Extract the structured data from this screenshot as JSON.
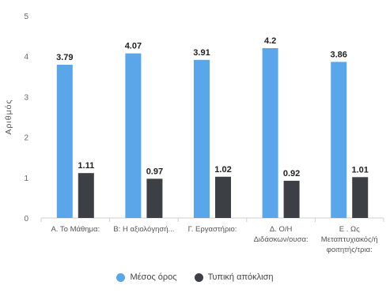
{
  "chart_data": {
    "type": "bar",
    "ylabel": "Αριθμός",
    "ylim": [
      0,
      5
    ],
    "yticks": [
      0,
      1,
      2,
      3,
      4,
      5
    ],
    "grid": false,
    "legend_position": "bottom",
    "categories": [
      [
        "Α. Το Μάθημα:"
      ],
      [
        "Β: Η αξιολόγησή..."
      ],
      [
        "Γ. Εργαστήριο:"
      ],
      [
        "Δ. Ο/Η",
        "Διδάσκων/ουσα:"
      ],
      [
        "Ε . Ως",
        "Μεταπτυχιακός/ή",
        "φοιτητής/τρια:"
      ]
    ],
    "series": [
      {
        "name": "Μέσος όρος",
        "color": "#5aa6ea",
        "values": [
          3.79,
          4.07,
          3.91,
          4.2,
          3.86
        ],
        "labels": [
          "3.79",
          "4.07",
          "3.91",
          "4.2",
          "3.86"
        ]
      },
      {
        "name": "Τυπική απόκλιση",
        "color": "#3c3f44",
        "values": [
          1.11,
          0.97,
          1.02,
          0.92,
          1.01
        ],
        "labels": [
          "1.11",
          "0.97",
          "1.02",
          "0.92",
          "1.01"
        ]
      }
    ]
  }
}
